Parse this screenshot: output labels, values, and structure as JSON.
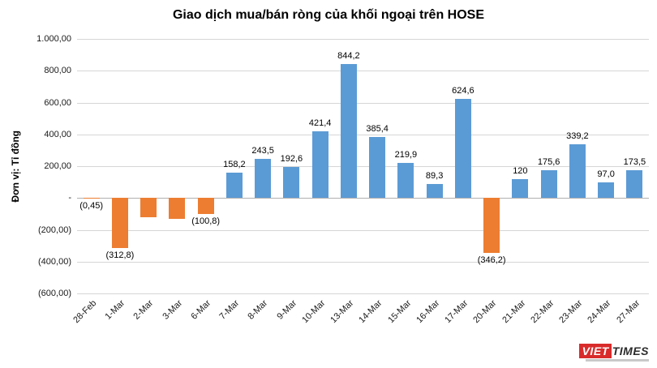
{
  "chart_data": {
    "type": "bar",
    "title": "Giao dịch mua/bán ròng của khối ngoại trên HOSE",
    "ylabel": "Đơn vị: Tỉ đồng",
    "xlabel": "",
    "ylim": [
      -600,
      1000
    ],
    "grid": true,
    "legend_position": "none",
    "colors": {
      "positive": "#5b9bd5",
      "negative": "#ed7d31"
    },
    "y_ticks": [
      {
        "value": 1000,
        "label": "1.000,00"
      },
      {
        "value": 800,
        "label": "800,00"
      },
      {
        "value": 600,
        "label": "600,00"
      },
      {
        "value": 400,
        "label": "400,00"
      },
      {
        "value": 200,
        "label": "200,00"
      },
      {
        "value": 0,
        "label": "-"
      },
      {
        "value": -200,
        "label": "(200,00)"
      },
      {
        "value": -400,
        "label": "(400,00)"
      },
      {
        "value": -600,
        "label": "(600,00)"
      }
    ],
    "categories": [
      "28-Feb",
      "1-Mar",
      "2-Mar",
      "3-Mar",
      "6-Mar",
      "7-Mar",
      "8-Mar",
      "9-Mar",
      "10-Mar",
      "13-Mar",
      "14-Mar",
      "15-Mar",
      "16-Mar",
      "17-Mar",
      "20-Mar",
      "21-Mar",
      "22-Mar",
      "23-Mar",
      "24-Mar",
      "27-Mar"
    ],
    "points": [
      {
        "category": "28-Feb",
        "value": -0.45,
        "label": "(0,45)"
      },
      {
        "category": "1-Mar",
        "value": -312.8,
        "label": "(312,8)"
      },
      {
        "category": "2-Mar",
        "value": -120,
        "label": ""
      },
      {
        "category": "3-Mar",
        "value": -130,
        "label": ""
      },
      {
        "category": "6-Mar",
        "value": -100.8,
        "label": "(100,8)"
      },
      {
        "category": "7-Mar",
        "value": 158.2,
        "label": "158,2"
      },
      {
        "category": "8-Mar",
        "value": 243.5,
        "label": "243,5"
      },
      {
        "category": "9-Mar",
        "value": 192.6,
        "label": "192,6"
      },
      {
        "category": "10-Mar",
        "value": 421.4,
        "label": "421,4"
      },
      {
        "category": "13-Mar",
        "value": 844.2,
        "label": "844,2"
      },
      {
        "category": "14-Mar",
        "value": 385.4,
        "label": "385,4"
      },
      {
        "category": "15-Mar",
        "value": 219.9,
        "label": "219,9"
      },
      {
        "category": "16-Mar",
        "value": 89.3,
        "label": "89,3"
      },
      {
        "category": "17-Mar",
        "value": 624.6,
        "label": "624,6"
      },
      {
        "category": "20-Mar",
        "value": -346.2,
        "label": "(346,2)"
      },
      {
        "category": "21-Mar",
        "value": 120,
        "label": "120"
      },
      {
        "category": "22-Mar",
        "value": 175.6,
        "label": "175,6"
      },
      {
        "category": "23-Mar",
        "value": 339.2,
        "label": "339,2"
      },
      {
        "category": "24-Mar",
        "value": 97.0,
        "label": "97,0"
      },
      {
        "category": "27-Mar",
        "value": 173.5,
        "label": "173,5"
      }
    ]
  },
  "logo": {
    "viet": "VIET",
    "times": "TIMES"
  }
}
